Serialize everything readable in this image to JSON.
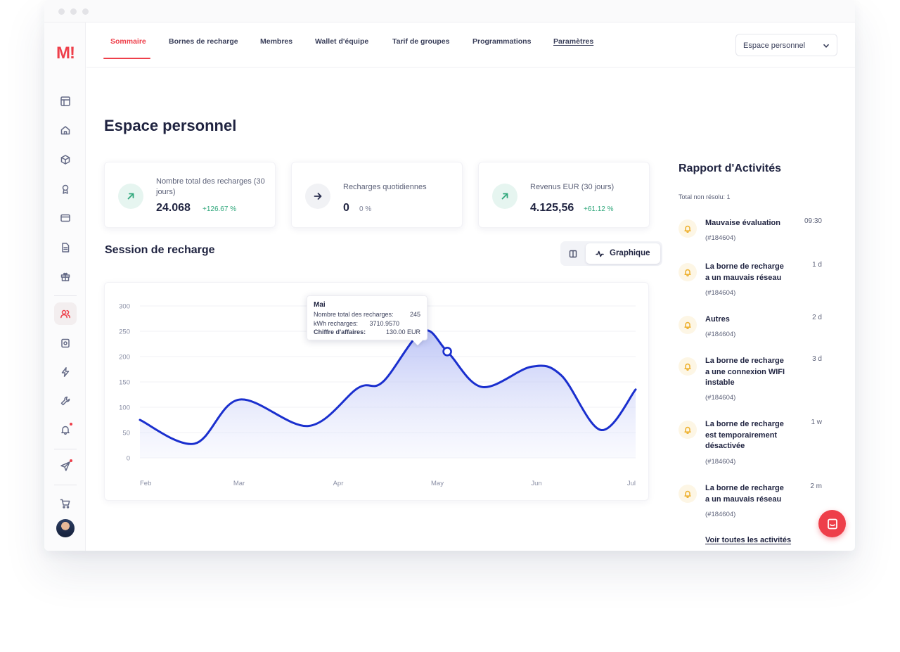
{
  "brand": {
    "logo": "M!",
    "accent": "#ee3f4a"
  },
  "nav": {
    "tabs": [
      {
        "label": "Sommaire",
        "active": true
      },
      {
        "label": "Bornes de recharge"
      },
      {
        "label": "Membres"
      },
      {
        "label": "Wallet d'équipe"
      },
      {
        "label": "Tarif de groupes"
      },
      {
        "label": "Programmations"
      },
      {
        "label": "Paramètres"
      }
    ],
    "workspace_select": "Espace personnel"
  },
  "sidebar": {
    "icons": [
      "layout-icon",
      "home-icon",
      "cube-icon",
      "award-icon",
      "credit-card-icon",
      "document-icon",
      "gift-icon",
      "users-icon",
      "badge-icon",
      "lightning-icon",
      "wrench-icon",
      "bell-icon",
      "send-icon",
      "cart-icon"
    ],
    "active": "users-icon",
    "notification_dots": [
      "bell-icon",
      "send-icon"
    ]
  },
  "page": {
    "title": "Espace personnel"
  },
  "stats": [
    {
      "label": "Nombre total des recharges (30 jours)",
      "value": "24.068",
      "change": "+126.67 %",
      "icon": "arrow-up-right-icon",
      "tone": "positive"
    },
    {
      "label": "Recharges quotidiennes",
      "value": "0",
      "change": "0 %",
      "icon": "arrow-right-icon",
      "tone": "neutral"
    },
    {
      "label": "Revenus EUR (30 jours)",
      "value": "4.125,56",
      "change": "+61.12 %",
      "icon": "arrow-up-right-icon",
      "tone": "positive"
    }
  ],
  "session": {
    "title": "Session de recharge",
    "view_toggle": {
      "active_label": "Graphique"
    }
  },
  "chart_data": {
    "type": "area",
    "x": [
      "Feb",
      "Mar",
      "Apr",
      "May",
      "Jun",
      "Jul"
    ],
    "ylim": [
      0,
      300
    ],
    "yticks": [
      0,
      50,
      100,
      150,
      200,
      250,
      300
    ],
    "grid": true,
    "series": [
      {
        "color": "#1a2fce",
        "points": [
          [
            0.0,
            75
          ],
          [
            0.55,
            28
          ],
          [
            1.0,
            115
          ],
          [
            1.7,
            63
          ],
          [
            2.2,
            138
          ],
          [
            2.45,
            150
          ],
          [
            2.85,
            250
          ],
          [
            3.1,
            210
          ],
          [
            3.45,
            140
          ],
          [
            3.95,
            180
          ],
          [
            4.25,
            163
          ],
          [
            4.65,
            55
          ],
          [
            5.0,
            135
          ]
        ]
      }
    ],
    "tooltip": {
      "title": "Mai",
      "rows": [
        {
          "label": "Nombre total des recharges:",
          "value": "245"
        },
        {
          "label": "kWh recharges:",
          "value": "3710.9570"
        },
        {
          "label": "Chiffre d'affaires:",
          "value": "130.00 EUR"
        }
      ]
    }
  },
  "report": {
    "title": "Rapport d'Activités",
    "subtitle": "Total non résolu: 1",
    "items": [
      {
        "title": "Mauvaise évaluation",
        "id": "(#184604)",
        "time": "09:30"
      },
      {
        "title": "La borne de recharge a un mauvais réseau",
        "id": "(#184604)",
        "time": "1 d"
      },
      {
        "title": "Autres",
        "id": "(#184604)",
        "time": "2 d"
      },
      {
        "title": "La borne de recharge a une connexion WIFI instable",
        "id": "(#184604)",
        "time": "3 d"
      },
      {
        "title": "La borne de recharge est temporairement désactivée",
        "id": "(#184604)",
        "time": "1 w"
      },
      {
        "title": "La borne de recharge a un mauvais réseau",
        "id": "(#184604)",
        "time": "2 m"
      }
    ],
    "see_all": "Voir toutes les activités"
  },
  "chat": {
    "icon": "chat-icon"
  }
}
